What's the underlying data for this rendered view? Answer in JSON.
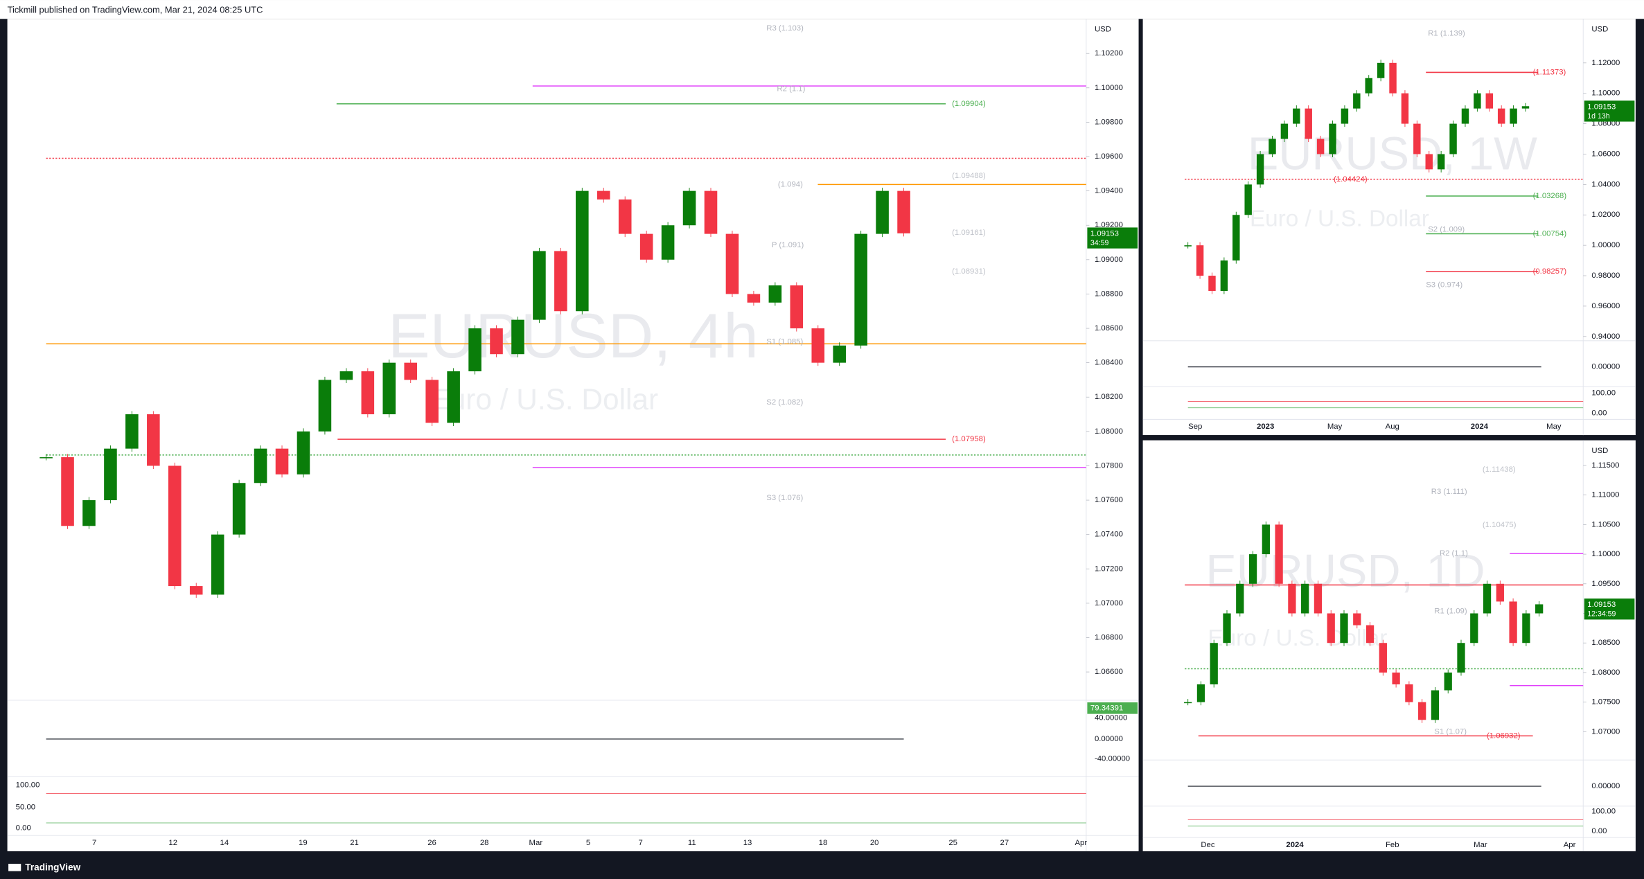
{
  "header": {
    "text": "Tickmill published on TradingView.com, Mar 21, 2024 08:25 UTC"
  },
  "footer": {
    "brand": "TradingView"
  },
  "panels": [
    {
      "symbol": "EURUSD, 4h",
      "description": "Euro / U.S. Dollar",
      "currency": "USD",
      "yticks": [
        {
          "value": 1.102,
          "label": "1.10200"
        },
        {
          "value": 1.1,
          "label": "1.10000"
        },
        {
          "value": 1.098,
          "label": "1.09800"
        },
        {
          "value": 1.096,
          "label": "1.09600"
        },
        {
          "value": 1.094,
          "label": "1.09400"
        },
        {
          "value": 1.092,
          "label": "1.09200"
        },
        {
          "value": 1.09,
          "label": "1.09000"
        },
        {
          "value": 1.088,
          "label": "1.08800"
        },
        {
          "value": 1.086,
          "label": "1.08600"
        },
        {
          "value": 1.084,
          "label": "1.08400"
        },
        {
          "value": 1.082,
          "label": "1.08200"
        },
        {
          "value": 1.08,
          "label": "1.08000"
        },
        {
          "value": 1.078,
          "label": "1.07800"
        },
        {
          "value": 1.076,
          "label": "1.07600"
        },
        {
          "value": 1.074,
          "label": "1.07400"
        },
        {
          "value": 1.072,
          "label": "1.07200"
        },
        {
          "value": 1.07,
          "label": "1.07000"
        },
        {
          "value": 1.068,
          "label": "1.06800"
        },
        {
          "value": 1.066,
          "label": "1.06600"
        }
      ],
      "xticks": [
        "7",
        "12",
        "14",
        "19",
        "21",
        "26",
        "28",
        "Mar",
        "5",
        "7",
        "11",
        "13",
        "18",
        "20",
        "25",
        "27",
        "Apr"
      ],
      "closes": [
        1.0785,
        1.0745,
        1.076,
        1.079,
        1.081,
        1.078,
        1.071,
        1.0705,
        1.074,
        1.077,
        1.079,
        1.0775,
        1.08,
        1.083,
        1.0835,
        1.081,
        1.084,
        1.083,
        1.0805,
        1.0835,
        1.086,
        1.0845,
        1.0865,
        1.0905,
        1.087,
        1.094,
        1.0935,
        1.0915,
        1.09,
        1.092,
        1.094,
        1.0915,
        1.088,
        1.0875,
        1.0885,
        1.086,
        1.084,
        1.085,
        1.0915,
        1.094,
        1.09153
      ],
      "levels": [
        {
          "label": "R3 (1.103)",
          "color": "#b2b5be"
        },
        {
          "label": "R2 (1.1)",
          "color": "#b2b5be"
        },
        {
          "label": "(1.09904)",
          "color": "#4caf50"
        },
        {
          "label": "(1.09488)",
          "color": "#c0c3ca"
        },
        {
          "label": "(1.094)",
          "color": "#b2b5be"
        },
        {
          "label": "(1.09161)",
          "color": "#c0c3ca"
        },
        {
          "label": "P (1.091)",
          "color": "#b2b5be"
        },
        {
          "label": "(1.08931)",
          "color": "#c0c3ca"
        },
        {
          "label": "S1 (1.085)",
          "color": "#b2b5be"
        },
        {
          "label": "S2 (1.082)",
          "color": "#b2b5be"
        },
        {
          "label": "(1.07958)",
          "color": "#f23645"
        },
        {
          "label": "S3 (1.076)",
          "color": "#b2b5be"
        }
      ],
      "last_price": "1.09153",
      "countdown": "34:59",
      "rsi_value": "79.34391",
      "rsi_ticks": [
        "40.00000",
        "0.00000",
        "-40.00000"
      ],
      "stoch_ticks": [
        "100.00",
        "50.00",
        "0.00"
      ]
    },
    {
      "symbol": "EURUSD, 1W",
      "description": "Euro / U.S. Dollar",
      "currency": "USD",
      "yticks": [
        {
          "value": 1.12,
          "label": "1.12000"
        },
        {
          "value": 1.1,
          "label": "1.10000"
        },
        {
          "value": 1.08,
          "label": "1.08000"
        },
        {
          "value": 1.06,
          "label": "1.06000"
        },
        {
          "value": 1.04,
          "label": "1.04000"
        },
        {
          "value": 1.02,
          "label": "1.02000"
        },
        {
          "value": 1.0,
          "label": "1.00000"
        },
        {
          "value": 0.98,
          "label": "0.98000"
        },
        {
          "value": 0.96,
          "label": "0.96000"
        },
        {
          "value": 0.94,
          "label": "0.94000"
        }
      ],
      "xticks": [
        "Sep",
        "2023",
        "May",
        "Aug",
        "2024",
        "May"
      ],
      "closes": [
        1.0,
        0.98,
        0.97,
        0.99,
        1.02,
        1.04,
        1.06,
        1.07,
        1.08,
        1.09,
        1.07,
        1.06,
        1.08,
        1.09,
        1.1,
        1.11,
        1.12,
        1.1,
        1.08,
        1.06,
        1.05,
        1.06,
        1.08,
        1.09,
        1.1,
        1.09,
        1.08,
        1.09,
        1.09153
      ],
      "levels": [
        {
          "label": "R1 (1.139)",
          "color": "#b2b5be"
        },
        {
          "label": "(1.11373)",
          "color": "#f23645"
        },
        {
          "label": "(1.04424)",
          "color": "#f23645"
        },
        {
          "label": "(1.03268)",
          "color": "#4caf50"
        },
        {
          "label": "S2 (1.009)",
          "color": "#b2b5be"
        },
        {
          "label": "(1.00754)",
          "color": "#4caf50"
        },
        {
          "label": "(0.98257)",
          "color": "#f23645"
        },
        {
          "label": "S3 (0.974)",
          "color": "#b2b5be"
        }
      ],
      "last_price": "1.09153",
      "countdown": "1d 13h",
      "rsi_ticks": [
        "0.00000"
      ],
      "stoch_ticks": [
        "100.00",
        "0.00"
      ]
    },
    {
      "symbol": "EURUSD, 1D",
      "description": "Euro / U.S. Dollar",
      "currency": "USD",
      "yticks": [
        {
          "value": 1.115,
          "label": "1.11500"
        },
        {
          "value": 1.11,
          "label": "1.11000"
        },
        {
          "value": 1.105,
          "label": "1.10500"
        },
        {
          "value": 1.1,
          "label": "1.10000"
        },
        {
          "value": 1.095,
          "label": "1.09500"
        },
        {
          "value": 1.09,
          "label": "1.09000"
        },
        {
          "value": 1.085,
          "label": "1.08500"
        },
        {
          "value": 1.08,
          "label": "1.08000"
        },
        {
          "value": 1.075,
          "label": "1.07500"
        },
        {
          "value": 1.07,
          "label": "1.07000"
        }
      ],
      "xticks": [
        "Dec",
        "2024",
        "Feb",
        "Mar",
        "Apr"
      ],
      "closes": [
        1.075,
        1.078,
        1.085,
        1.09,
        1.095,
        1.1,
        1.105,
        1.095,
        1.09,
        1.095,
        1.09,
        1.085,
        1.09,
        1.088,
        1.085,
        1.08,
        1.078,
        1.075,
        1.072,
        1.077,
        1.08,
        1.085,
        1.09,
        1.095,
        1.092,
        1.085,
        1.09,
        1.09153
      ],
      "levels": [
        {
          "label": "(1.11438)",
          "color": "#c0c3ca"
        },
        {
          "label": "R3 (1.111)",
          "color": "#b2b5be"
        },
        {
          "label": "(1.10475)",
          "color": "#c0c3ca"
        },
        {
          "label": "R2 (1.1)",
          "color": "#b2b5be"
        },
        {
          "label": "R1 (1.09)",
          "color": "#b2b5be"
        },
        {
          "label": "S1 (1.07)",
          "color": "#b2b5be"
        },
        {
          "label": "(1.06932)",
          "color": "#f23645"
        }
      ],
      "last_price": "1.09153",
      "countdown": "12:34:59",
      "rsi_ticks": [
        "0.00000"
      ],
      "stoch_ticks": [
        "100.00",
        "0.00"
      ]
    }
  ]
}
